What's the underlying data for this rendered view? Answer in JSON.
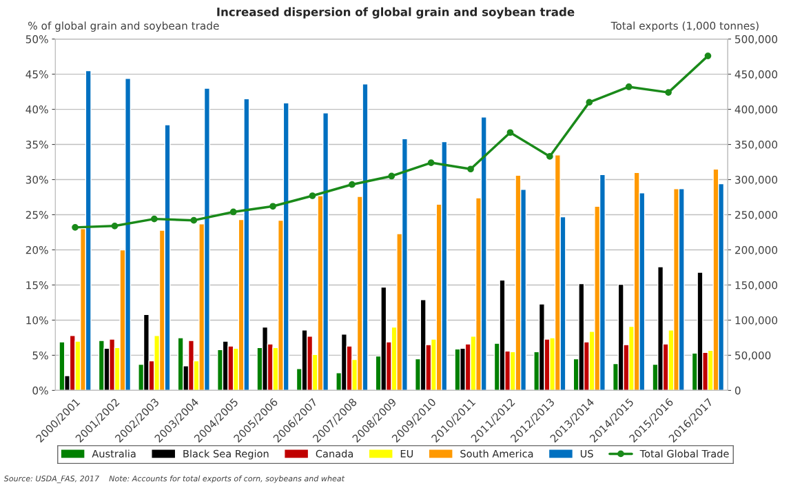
{
  "chart_data": {
    "type": "bar",
    "title": "Increased dispersion of global grain and soybean trade",
    "ylabel": "% of global grain and soybean trade",
    "y2label": "Total exports (1,000 tonnes)",
    "categories": [
      "2000/2001",
      "2001/2002",
      "2002/2003",
      "2003/2004",
      "2004/2005",
      "2005/2006",
      "2006/2007",
      "2007/2008",
      "2008/2009",
      "2009/2010",
      "2010/2011",
      "2011/2012",
      "2012/2013",
      "2013/2014",
      "2014/2015",
      "2015/2016",
      "2016/2017"
    ],
    "series": [
      {
        "name": "Australia",
        "color": "#008000",
        "values": [
          6.9,
          7.1,
          3.7,
          7.5,
          5.8,
          6.1,
          3.1,
          2.5,
          4.9,
          4.5,
          5.9,
          6.7,
          5.5,
          4.5,
          3.8,
          3.7,
          5.3
        ]
      },
      {
        "name": "Black Sea Region",
        "color": "#000000",
        "values": [
          2.1,
          6.0,
          10.8,
          3.5,
          7.0,
          9.0,
          8.6,
          8.0,
          14.7,
          12.9,
          6.0,
          15.7,
          12.3,
          15.2,
          15.1,
          17.6,
          16.8
        ]
      },
      {
        "name": "Canada",
        "color": "#c00000",
        "values": [
          7.8,
          7.3,
          4.2,
          7.1,
          6.3,
          6.6,
          7.7,
          6.3,
          6.9,
          6.5,
          6.6,
          5.6,
          7.3,
          6.9,
          6.5,
          6.6,
          5.4
        ]
      },
      {
        "name": "EU",
        "color": "#ffff00",
        "values": [
          7.0,
          6.1,
          7.8,
          4.2,
          6.0,
          6.1,
          5.1,
          4.4,
          9.0,
          7.3,
          7.7,
          5.5,
          7.5,
          8.4,
          9.1,
          8.6,
          5.7
        ]
      },
      {
        "name": "South America",
        "color": "#ff9900",
        "values": [
          23.0,
          20.0,
          22.8,
          23.7,
          24.3,
          24.2,
          27.7,
          27.6,
          22.3,
          26.5,
          27.4,
          30.6,
          33.5,
          26.2,
          31.0,
          28.7,
          31.5
        ]
      },
      {
        "name": "US",
        "color": "#0070c0",
        "values": [
          45.5,
          44.4,
          37.8,
          43.0,
          41.5,
          40.9,
          39.5,
          43.6,
          35.8,
          35.4,
          38.9,
          28.6,
          24.7,
          30.7,
          28.1,
          28.7,
          29.4
        ]
      },
      {
        "name": "Total Global Trade",
        "color": "#1a8a1a",
        "type": "line",
        "axis": "y2",
        "marker": "circle",
        "values": [
          232000,
          234000,
          244000,
          242000,
          254000,
          262000,
          277000,
          293000,
          305000,
          324000,
          315000,
          367000,
          333000,
          410000,
          432000,
          424000,
          476000
        ]
      }
    ],
    "ylim": [
      0,
      50
    ],
    "yticks": [
      {
        "value": 0,
        "label": "0%"
      },
      {
        "value": 5,
        "label": "5%"
      },
      {
        "value": 10,
        "label": "10%"
      },
      {
        "value": 15,
        "label": "15%"
      },
      {
        "value": 20,
        "label": "20%"
      },
      {
        "value": 25,
        "label": "25%"
      },
      {
        "value": 30,
        "label": "30%"
      },
      {
        "value": 35,
        "label": "35%"
      },
      {
        "value": 40,
        "label": "40%"
      },
      {
        "value": 45,
        "label": "45%"
      },
      {
        "value": 50,
        "label": "50%"
      }
    ],
    "y2lim": [
      0,
      500000
    ],
    "y2ticks": [
      0,
      {
        "value": 50000,
        "label": "50,000"
      },
      {
        "value": 100000,
        "label": "100,000"
      },
      {
        "value": 150000,
        "label": "150,000"
      },
      {
        "value": 200000,
        "label": "200,000"
      },
      {
        "value": 250000,
        "label": "250,000"
      },
      {
        "value": 300000,
        "label": "300,000"
      },
      {
        "value": 350000,
        "label": "350,000"
      },
      {
        "value": 400000,
        "label": "400,000"
      },
      {
        "value": 450000,
        "label": "450,000"
      },
      {
        "value": 500000,
        "label": "500,000"
      }
    ],
    "grid": "y",
    "legend": "bottom",
    "annotations": [
      "Source: USDA_FAS, 2017    Note: Accounts for total exports of corn, soybeans and wheat"
    ]
  }
}
